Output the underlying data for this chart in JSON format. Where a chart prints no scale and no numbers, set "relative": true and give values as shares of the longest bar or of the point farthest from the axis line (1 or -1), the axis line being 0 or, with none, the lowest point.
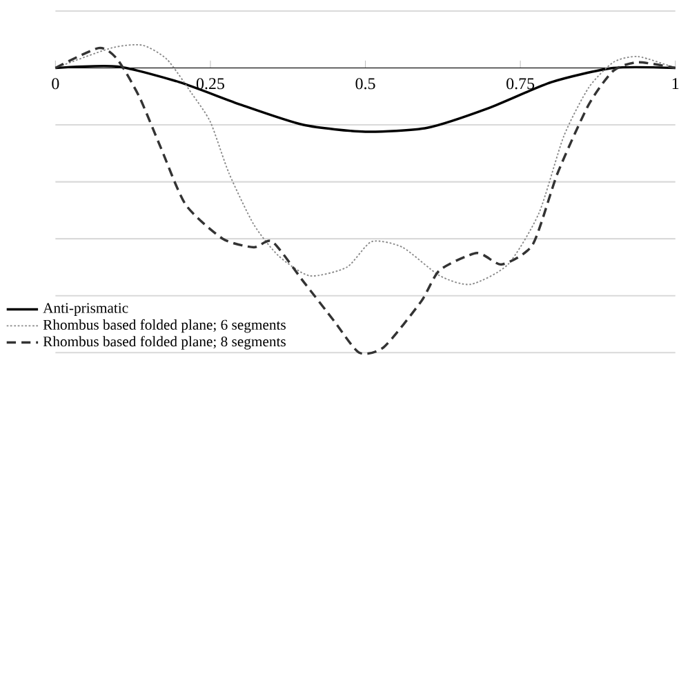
{
  "chart_data": {
    "type": "line",
    "relative": true,
    "xlim": [
      0,
      1
    ],
    "xticks": [
      0,
      0.25,
      0.5,
      0.75,
      1
    ],
    "grid": "y",
    "legend": "bottom left",
    "marker": "none",
    "series": [
      {
        "name": "Anti-prismatic",
        "color": "#000000",
        "line_style": "solid",
        "x": [
          0,
          0.1,
          0.2,
          0.3,
          0.4,
          0.5,
          0.6,
          0.7,
          0.8,
          0.9,
          1
        ],
        "values": [
          0,
          0.005,
          -0.05,
          -0.13,
          -0.2,
          -0.224,
          -0.21,
          -0.14,
          -0.05,
          0,
          0
        ]
      },
      {
        "name": "Rhombus based folded plane; 6 segments",
        "color": "#888888",
        "line_style": "dotted",
        "x": [
          0,
          0.09,
          0.14,
          0.18,
          0.22,
          0.25,
          0.28,
          0.32,
          0.36,
          0.41,
          0.47,
          0.51,
          0.56,
          0.62,
          0.67,
          0.73,
          0.78,
          0.82,
          0.86,
          0.9,
          0.94,
          1
        ],
        "values": [
          0,
          0.07,
          0.08,
          0.03,
          -0.09,
          -0.19,
          -0.37,
          -0.55,
          -0.66,
          -0.73,
          -0.7,
          -0.61,
          -0.63,
          -0.73,
          -0.76,
          -0.69,
          -0.51,
          -0.24,
          -0.07,
          0.02,
          0.04,
          0
        ]
      },
      {
        "name": "Rhombus based folded plane; 8 segments",
        "color": "#333333",
        "line_style": "dashed",
        "x": [
          0,
          0.07,
          0.1,
          0.135,
          0.17,
          0.21,
          0.27,
          0.32,
          0.35,
          0.4,
          0.45,
          0.49,
          0.53,
          0.59,
          0.62,
          0.68,
          0.72,
          0.77,
          0.81,
          0.86,
          0.9,
          0.94,
          1
        ],
        "values": [
          0,
          0.07,
          0.03,
          -0.1,
          -0.28,
          -0.48,
          -0.6,
          -0.63,
          -0.61,
          -0.75,
          -0.89,
          -1,
          -0.98,
          -0.82,
          -0.71,
          -0.65,
          -0.69,
          -0.62,
          -0.37,
          -0.13,
          -0.01,
          0.02,
          0
        ]
      }
    ]
  }
}
